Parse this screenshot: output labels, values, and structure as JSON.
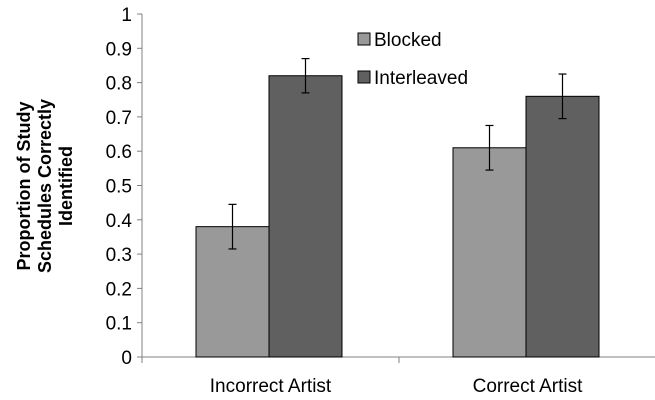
{
  "chart_data": {
    "type": "bar",
    "title": "",
    "xlabel": "",
    "ylabel_lines": [
      "Proportion of Study",
      "Schedules Correctly",
      "Identified"
    ],
    "ylim": [
      0,
      1
    ],
    "yticks": [
      "0",
      "0.1",
      "0.2",
      "0.3",
      "0.4",
      "0.5",
      "0.6",
      "0.7",
      "0.8",
      "0.9",
      "1"
    ],
    "ytick_values": [
      0,
      0.1,
      0.2,
      0.3,
      0.4,
      0.5,
      0.6,
      0.7,
      0.8,
      0.9,
      1
    ],
    "grid": false,
    "legend_position": "top-center",
    "categories": [
      "Incorrect Artist",
      "Correct Artist"
    ],
    "series": [
      {
        "name": "Blocked",
        "color": "#999999",
        "values": [
          0.38,
          0.61
        ],
        "error": [
          0.065,
          0.065
        ]
      },
      {
        "name": "Interleaved",
        "color": "#606060",
        "values": [
          0.82,
          0.76
        ],
        "error": [
          0.05,
          0.065
        ]
      }
    ]
  }
}
